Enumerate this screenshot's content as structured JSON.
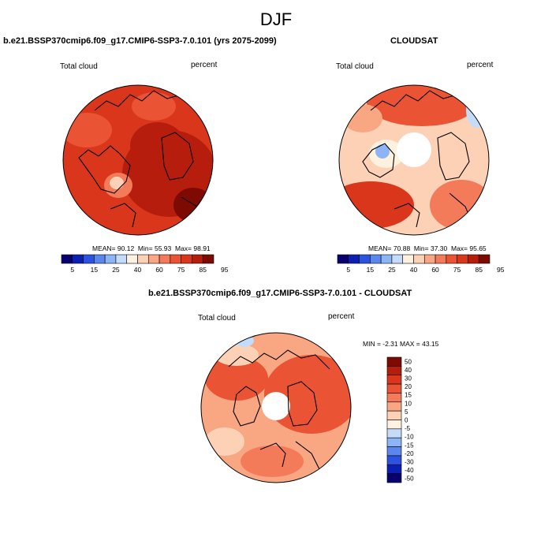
{
  "season": "DJF",
  "panels": {
    "model": {
      "title": "b.e21.BSSP370cmip6.f09_g17.CMIP6-SSP3-7.0.101 (yrs 2075-2099)",
      "left_label": "Total cloud",
      "right_label": "percent",
      "stats": {
        "mean_label": "MEAN=",
        "mean": "90.12",
        "min_label": "Min=",
        "min": "55.93",
        "max_label": "Max=",
        "max": "98.91"
      }
    },
    "obs": {
      "title": "CLOUDSAT",
      "left_label": "Total cloud",
      "right_label": "percent",
      "stats": {
        "mean_label": "MEAN=",
        "mean": "70.88",
        "min_label": "Min=",
        "min": "37.30",
        "max_label": "Max=",
        "max": "95.65"
      }
    },
    "diff": {
      "title": "b.e21.BSSP370cmip6.f09_g17.CMIP6-SSP3-7.0.101 - CLOUDSAT",
      "left_label": "Total cloud",
      "right_label": "percent",
      "stats_text": "MIN =  -2.31 MAX =  43.15"
    }
  },
  "abs_colorbar": {
    "colors": [
      "#08006e",
      "#0b1fb3",
      "#2b53e0",
      "#5a86ee",
      "#8db4f5",
      "#c4dcf9",
      "#fff1e0",
      "#fdd1b5",
      "#f9a783",
      "#f47b5a",
      "#ea5333",
      "#d9361b",
      "#b71d0c",
      "#7d0a03"
    ],
    "ticks": [
      "5",
      "15",
      "25",
      "40",
      "60",
      "75",
      "85",
      "95"
    ]
  },
  "diff_colorbar": {
    "colors": [
      "#7d0a03",
      "#b71d0c",
      "#d9361b",
      "#ea5333",
      "#f47b5a",
      "#f9a783",
      "#fdd1b5",
      "#fff1e0",
      "#c4dcf9",
      "#8db4f5",
      "#5a86ee",
      "#2b53e0",
      "#0b1fb3",
      "#08006e"
    ],
    "ticks": [
      "50",
      "40",
      "30",
      "20",
      "15",
      "10",
      "5",
      "0",
      "-5",
      "-10",
      "-15",
      "-20",
      "-30",
      "-40",
      "-50"
    ]
  }
}
